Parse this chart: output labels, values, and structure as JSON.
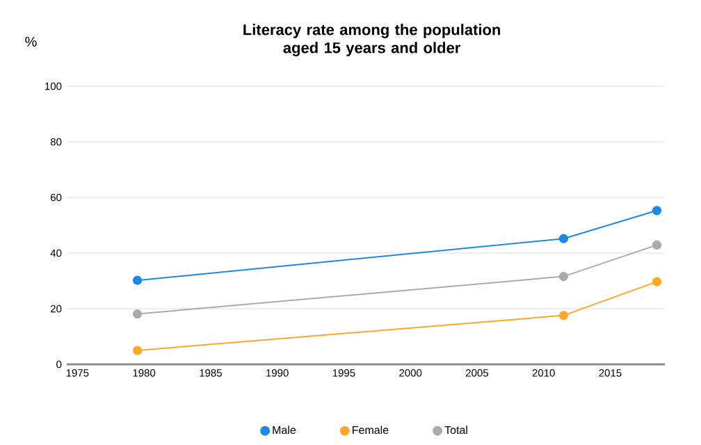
{
  "chart_data": {
    "type": "line",
    "title": "Literacy rate among the population aged 15 years and older",
    "ylabel": "%",
    "x": [
      1979.5,
      2011.5,
      2018.5
    ],
    "series": [
      {
        "name": "Male",
        "color": "#1e88e5",
        "values": [
          30.2,
          45.2,
          55.3
        ]
      },
      {
        "name": "Female",
        "color": "#ffa726",
        "values": [
          5.0,
          17.6,
          29.7
        ]
      },
      {
        "name": "Total",
        "color": "#aaaaaa",
        "values": [
          18.1,
          31.6,
          42.9
        ]
      }
    ],
    "xlim": [
      1974.2,
      2019.1
    ],
    "xticks": [
      1975,
      1980,
      1985,
      1990,
      1995,
      2000,
      2005,
      2010,
      2015
    ],
    "ylim": [
      0,
      100
    ],
    "yticks": [
      0,
      20,
      40,
      60,
      80,
      100
    ],
    "grid": "y",
    "legend": "bottom",
    "marker": "circle",
    "line_style": "solid"
  }
}
